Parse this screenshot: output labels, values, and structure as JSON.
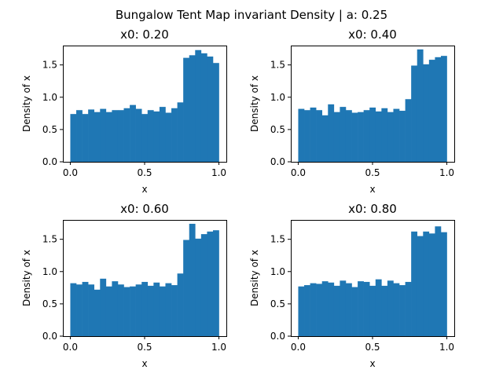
{
  "suptitle": "Bungalow Tent Map invariant Density | a: 0.25",
  "colors": {
    "bar": "#1f77b4",
    "axis": "#000000"
  },
  "chart_data": [
    {
      "type": "bar",
      "title": "x0: 0.20",
      "xlabel": "x",
      "ylabel": "Density of x",
      "xlim": [
        -0.05,
        1.05
      ],
      "ylim": [
        0,
        1.8
      ],
      "xticks": [
        "0.0",
        "0.5",
        "1.0"
      ],
      "yticks": [
        "0.0",
        "0.5",
        "1.0",
        "1.5"
      ],
      "bin_edges_start": 0.0,
      "bin_width": 0.04,
      "values": [
        0.74,
        0.8,
        0.74,
        0.81,
        0.77,
        0.82,
        0.77,
        0.8,
        0.8,
        0.83,
        0.88,
        0.82,
        0.74,
        0.8,
        0.78,
        0.85,
        0.76,
        0.83,
        0.92,
        1.61,
        1.65,
        1.73,
        1.68,
        1.63,
        1.53
      ]
    },
    {
      "type": "bar",
      "title": "x0: 0.40",
      "xlabel": "x",
      "ylabel": "Density of x",
      "xlim": [
        -0.05,
        1.05
      ],
      "ylim": [
        0,
        1.8
      ],
      "xticks": [
        "0.0",
        "0.5",
        "1.0"
      ],
      "yticks": [
        "0.0",
        "0.5",
        "1.0",
        "1.5"
      ],
      "bin_edges_start": 0.0,
      "bin_width": 0.04,
      "values": [
        0.82,
        0.8,
        0.84,
        0.8,
        0.72,
        0.89,
        0.77,
        0.85,
        0.8,
        0.76,
        0.77,
        0.8,
        0.84,
        0.78,
        0.83,
        0.77,
        0.82,
        0.79,
        0.97,
        1.49,
        1.74,
        1.51,
        1.58,
        1.62,
        1.64
      ]
    },
    {
      "type": "bar",
      "title": "x0: 0.60",
      "xlabel": "x",
      "ylabel": "Density of x",
      "xlim": [
        -0.05,
        1.05
      ],
      "ylim": [
        0,
        1.8
      ],
      "xticks": [
        "0.0",
        "0.5",
        "1.0"
      ],
      "yticks": [
        "0.0",
        "0.5",
        "1.0",
        "1.5"
      ],
      "bin_edges_start": 0.0,
      "bin_width": 0.04,
      "values": [
        0.82,
        0.8,
        0.84,
        0.8,
        0.72,
        0.89,
        0.77,
        0.85,
        0.8,
        0.76,
        0.77,
        0.8,
        0.84,
        0.78,
        0.83,
        0.77,
        0.82,
        0.79,
        0.97,
        1.49,
        1.74,
        1.51,
        1.58,
        1.62,
        1.64
      ]
    },
    {
      "type": "bar",
      "title": "x0: 0.80",
      "xlabel": "x",
      "ylabel": "Density of x",
      "xlim": [
        -0.05,
        1.05
      ],
      "ylim": [
        0,
        1.8
      ],
      "xticks": [
        "0.0",
        "0.5",
        "1.0"
      ],
      "yticks": [
        "0.0",
        "0.5",
        "1.0",
        "1.5"
      ],
      "bin_edges_start": 0.0,
      "bin_width": 0.04,
      "values": [
        0.77,
        0.79,
        0.82,
        0.81,
        0.85,
        0.83,
        0.78,
        0.86,
        0.82,
        0.76,
        0.85,
        0.84,
        0.78,
        0.88,
        0.78,
        0.86,
        0.82,
        0.79,
        0.84,
        1.62,
        1.55,
        1.62,
        1.59,
        1.7,
        1.61
      ]
    }
  ]
}
